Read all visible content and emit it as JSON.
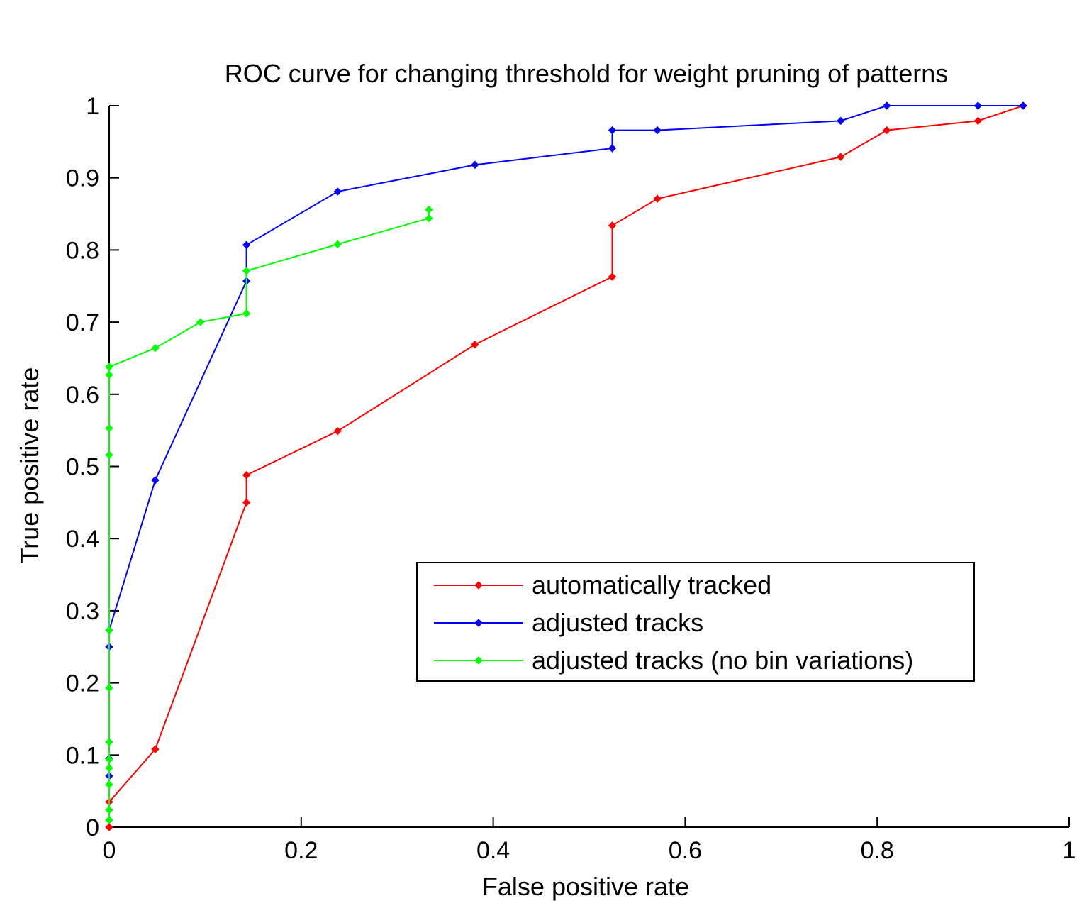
{
  "chart_data": {
    "type": "line",
    "title": "ROC curve for changing threshold for weight pruning of patterns",
    "xlabel": "False positive rate",
    "ylabel": "True positive rate",
    "xlim": [
      0,
      1
    ],
    "ylim": [
      0,
      1
    ],
    "x_ticks": [
      "0",
      "0.2",
      "0.4",
      "0.6",
      "0.8",
      "1"
    ],
    "y_ticks": [
      "0",
      "0.1",
      "0.2",
      "0.3",
      "0.4",
      "0.5",
      "0.6",
      "0.7",
      "0.8",
      "0.9",
      "1"
    ],
    "grid": false,
    "legend_position": "lower-right",
    "series": [
      {
        "name": "automatically tracked",
        "color": "#ff0000",
        "x": [
          0,
          0,
          0.048,
          0.143,
          0.143,
          0.238,
          0.381,
          0.524,
          0.524,
          0.571,
          0.762,
          0.81,
          0.905,
          0.952
        ],
        "y": [
          0,
          0.035,
          0.108,
          0.45,
          0.488,
          0.549,
          0.669,
          0.763,
          0.834,
          0.871,
          0.929,
          0.966,
          0.979,
          1.0
        ]
      },
      {
        "name": "adjusted tracks",
        "color": "#0000ff",
        "x": [
          0,
          0,
          0,
          0,
          0.048,
          0.143,
          0.143,
          0.238,
          0.381,
          0.524,
          0.524,
          0.571,
          0.762,
          0.81,
          0.905,
          0.952
        ],
        "y": [
          0.071,
          0.095,
          0.25,
          0.273,
          0.481,
          0.757,
          0.807,
          0.881,
          0.918,
          0.941,
          0.966,
          0.966,
          0.979,
          1.0,
          1.0,
          1.0
        ]
      },
      {
        "name": "adjusted tracks (no bin variations)",
        "color": "#00ff00",
        "x": [
          0,
          0,
          0,
          0,
          0,
          0,
          0,
          0,
          0,
          0,
          0,
          0,
          0,
          0.048,
          0.095,
          0.143,
          0.143,
          0.238,
          0.333,
          0.333
        ],
        "y": [
          0.01,
          0.024,
          0.059,
          0.082,
          0.094,
          0.118,
          0.193,
          0.273,
          0.516,
          0.553,
          0.627,
          0.638,
          0.638,
          0.664,
          0.7,
          0.712,
          0.771,
          0.808,
          0.844,
          0.856
        ]
      }
    ]
  }
}
